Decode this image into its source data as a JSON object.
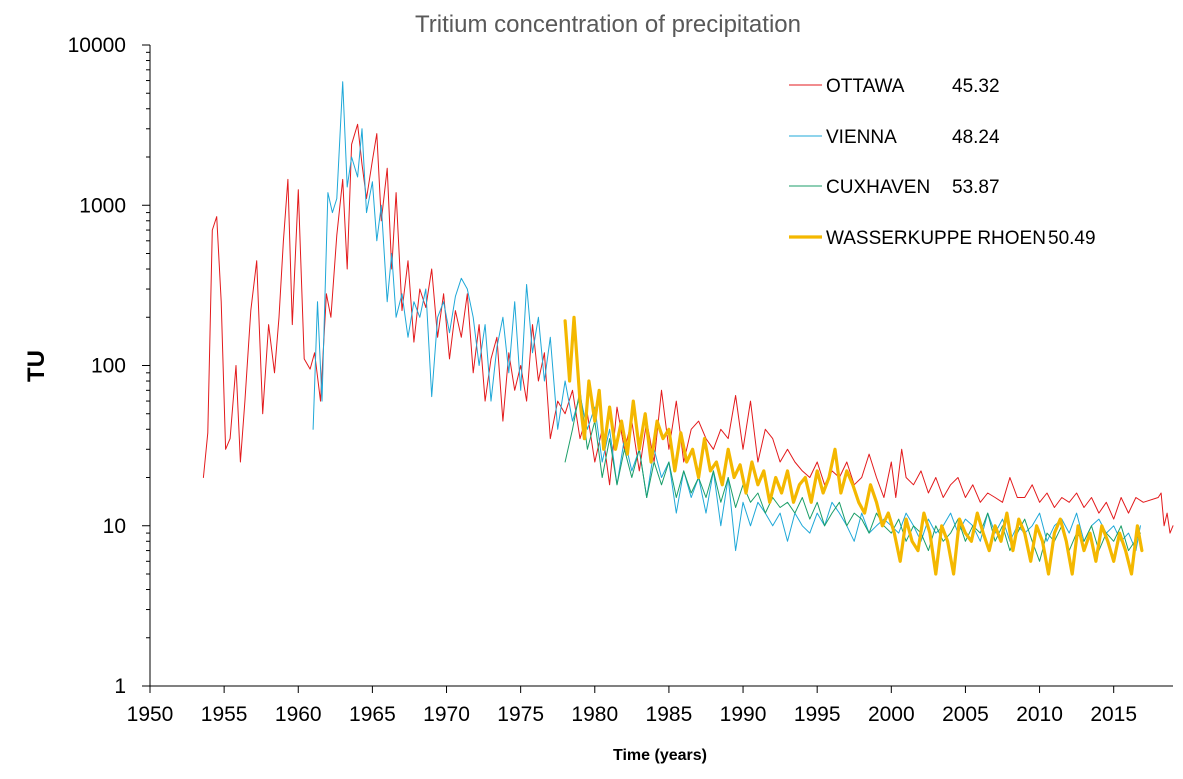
{
  "chart_data": {
    "type": "line",
    "title": "Tritium concentration of precipitation",
    "xlabel": "Time (years)",
    "ylabel": "TU",
    "xlim": [
      1950,
      2019
    ],
    "ylim": [
      1,
      10000
    ],
    "y_scale": "log",
    "x_ticks": [
      "1950",
      "1955",
      "1960",
      "1965",
      "1970",
      "1975",
      "1980",
      "1985",
      "1990",
      "1995",
      "2000",
      "2005",
      "2010",
      "2015"
    ],
    "y_ticks": [
      "1",
      "10",
      "100",
      "1000",
      "10000"
    ],
    "grid": false,
    "legend_position": "top-right",
    "series": [
      {
        "name": "OTTAWA",
        "legend_value": "45.32",
        "color": "#E31A1C",
        "width": 1,
        "x": [
          1953.6,
          1953.9,
          1954.2,
          1954.5,
          1954.8,
          1955.1,
          1955.4,
          1955.8,
          1956.1,
          1956.4,
          1956.8,
          1957.2,
          1957.6,
          1958.0,
          1958.4,
          1958.7,
          1959.0,
          1959.3,
          1959.6,
          1960.0,
          1960.4,
          1960.8,
          1961.1,
          1961.5,
          1961.9,
          1962.2,
          1962.6,
          1963.0,
          1963.3,
          1963.6,
          1964.0,
          1964.3,
          1964.6,
          1965.0,
          1965.3,
          1965.6,
          1966.0,
          1966.3,
          1966.6,
          1967.0,
          1967.4,
          1967.8,
          1968.2,
          1968.6,
          1969.0,
          1969.4,
          1969.8,
          1970.2,
          1970.6,
          1971.0,
          1971.4,
          1971.8,
          1972.2,
          1972.6,
          1973.0,
          1973.4,
          1973.8,
          1974.2,
          1974.6,
          1975.0,
          1975.4,
          1975.8,
          1976.2,
          1976.6,
          1977.0,
          1977.5,
          1978.0,
          1978.5,
          1979.0,
          1979.5,
          1980.0,
          1980.5,
          1981.0,
          1981.5,
          1982.0,
          1982.5,
          1983.0,
          1983.5,
          1984.0,
          1984.5,
          1985.0,
          1985.5,
          1986.0,
          1986.5,
          1987.0,
          1987.5,
          1988.0,
          1988.5,
          1989.0,
          1989.5,
          1990.0,
          1990.5,
          1991.0,
          1991.5,
          1992.0,
          1992.5,
          1993.0,
          1993.5,
          1994.0,
          1994.5,
          1995.0,
          1995.5,
          1996.0,
          1996.5,
          1997.0,
          1997.5,
          1998.0,
          1998.5,
          1999.0,
          1999.5,
          2000.0,
          2000.3,
          2000.7,
          2001.0,
          2001.5,
          2002.0,
          2002.5,
          2003.0,
          2003.5,
          2004.0,
          2004.5,
          2005.0,
          2005.5,
          2006.0,
          2006.5,
          2007.0,
          2007.5,
          2008.0,
          2008.5,
          2009.0,
          2009.5,
          2010.0,
          2010.5,
          2011.0,
          2011.5,
          2012.0,
          2012.5,
          2013.0,
          2013.5,
          2014.0,
          2014.5,
          2015.0,
          2015.5,
          2016.0,
          2016.5,
          2017.0,
          2018.0,
          2018.2,
          2018.4,
          2018.6,
          2018.8,
          2019.0
        ],
        "y": [
          20,
          38,
          700,
          850,
          250,
          30,
          35,
          100,
          25,
          60,
          220,
          450,
          50,
          180,
          90,
          200,
          600,
          1450,
          180,
          1250,
          110,
          95,
          120,
          60,
          280,
          200,
          650,
          1450,
          400,
          2400,
          3200,
          1800,
          1100,
          1900,
          2800,
          800,
          1700,
          400,
          1200,
          220,
          450,
          140,
          300,
          230,
          400,
          150,
          280,
          110,
          220,
          150,
          280,
          90,
          180,
          60,
          110,
          150,
          45,
          120,
          70,
          100,
          60,
          180,
          80,
          120,
          35,
          60,
          50,
          70,
          35,
          50,
          25,
          40,
          18,
          55,
          30,
          45,
          22,
          45,
          25,
          70,
          30,
          60,
          25,
          40,
          45,
          35,
          30,
          40,
          35,
          65,
          30,
          60,
          25,
          40,
          35,
          25,
          30,
          25,
          22,
          20,
          25,
          18,
          22,
          20,
          25,
          18,
          20,
          28,
          20,
          15,
          25,
          15,
          30,
          20,
          18,
          22,
          16,
          20,
          15,
          18,
          20,
          15,
          18,
          14,
          16,
          15,
          14,
          20,
          15,
          15,
          18,
          14,
          16,
          13,
          15,
          14,
          16,
          13,
          15,
          12,
          14,
          11,
          15,
          12,
          15,
          14,
          15,
          16,
          10,
          12,
          9,
          10
        ]
      },
      {
        "name": "VIENNA",
        "legend_value": "48.24",
        "color": "#1FA8D8",
        "width": 1,
        "x": [
          1961.0,
          1961.3,
          1961.6,
          1962.0,
          1962.3,
          1962.6,
          1963.0,
          1963.3,
          1963.6,
          1964.0,
          1964.3,
          1964.6,
          1965.0,
          1965.3,
          1965.6,
          1966.0,
          1966.3,
          1966.6,
          1967.0,
          1967.4,
          1967.8,
          1968.2,
          1968.6,
          1969.0,
          1969.4,
          1969.8,
          1970.2,
          1970.6,
          1971.0,
          1971.4,
          1971.8,
          1972.2,
          1972.6,
          1973.0,
          1973.4,
          1973.8,
          1974.2,
          1974.6,
          1975.0,
          1975.4,
          1975.8,
          1976.2,
          1976.6,
          1977.0,
          1977.5,
          1978.0,
          1978.5,
          1979.0,
          1979.5,
          1980.0,
          1980.5,
          1981.0,
          1981.5,
          1982.0,
          1982.5,
          1983.0,
          1983.5,
          1984.0,
          1984.5,
          1985.0,
          1985.5,
          1986.0,
          1986.5,
          1987.0,
          1987.5,
          1988.0,
          1988.5,
          1989.0,
          1989.5,
          1990.0,
          1990.5,
          1991.0,
          1991.5,
          1992.0,
          1992.5,
          1993.0,
          1993.5,
          1994.0,
          1994.5,
          1995.0,
          1995.5,
          1996.0,
          1996.5,
          1997.0,
          1997.5,
          1998.0,
          1998.5,
          1999.0,
          1999.5,
          2000.0,
          2000.5,
          2001.0,
          2001.5,
          2002.0,
          2002.5,
          2003.0,
          2003.5,
          2004.0,
          2004.5,
          2005.0,
          2005.5,
          2006.0,
          2006.5,
          2007.0,
          2007.5,
          2008.0,
          2008.5,
          2009.0,
          2009.5,
          2010.0,
          2010.5,
          2011.0,
          2011.5,
          2012.0,
          2012.5,
          2013.0,
          2013.5,
          2014.0,
          2014.5,
          2015.0,
          2015.5,
          2016.0,
          2016.5,
          2016.8
        ],
        "y": [
          40,
          250,
          60,
          1200,
          900,
          1100,
          5900,
          1300,
          2000,
          1500,
          3000,
          900,
          1400,
          600,
          1000,
          250,
          500,
          200,
          280,
          150,
          250,
          200,
          300,
          64,
          200,
          250,
          160,
          270,
          350,
          300,
          200,
          100,
          180,
          60,
          130,
          200,
          90,
          250,
          70,
          320,
          120,
          200,
          80,
          150,
          40,
          80,
          45,
          65,
          40,
          55,
          25,
          40,
          18,
          35,
          22,
          30,
          15,
          30,
          20,
          25,
          12,
          22,
          15,
          20,
          12,
          22,
          10,
          20,
          7,
          14,
          10,
          14,
          12,
          10,
          12,
          8,
          12,
          10,
          9,
          12,
          10,
          14,
          12,
          10,
          8,
          12,
          9,
          10,
          11,
          10,
          9,
          12,
          10,
          8,
          11,
          9,
          10,
          12,
          9,
          11,
          10,
          8,
          12,
          9,
          11,
          8,
          10,
          9,
          10,
          12,
          8,
          10,
          11,
          9,
          12,
          8,
          10,
          11,
          9,
          10,
          8,
          9,
          7,
          10
        ]
      },
      {
        "name": "CUXHAVEN",
        "legend_value": "53.87",
        "color": "#1B9E68",
        "width": 1,
        "x": [
          1978.0,
          1978.5,
          1979.0,
          1979.5,
          1980.0,
          1980.5,
          1981.0,
          1981.5,
          1982.0,
          1982.5,
          1983.0,
          1983.5,
          1984.0,
          1984.5,
          1985.0,
          1985.5,
          1986.0,
          1986.5,
          1987.0,
          1987.5,
          1988.0,
          1988.5,
          1989.0,
          1989.5,
          1990.0,
          1990.5,
          1991.0,
          1991.5,
          1992.0,
          1992.5,
          1993.0,
          1993.5,
          1994.0,
          1994.5,
          1995.0,
          1995.5,
          1996.0,
          1996.5,
          1997.0,
          1997.5,
          1998.0,
          1998.5,
          1999.0,
          1999.5,
          2000.0,
          2000.5,
          2001.0,
          2001.5,
          2002.0,
          2002.5,
          2003.0,
          2003.5,
          2004.0,
          2004.5,
          2005.0,
          2005.5,
          2006.0,
          2006.5,
          2007.0,
          2007.5,
          2008.0,
          2008.5,
          2009.0,
          2009.5,
          2010.0,
          2010.5,
          2011.0,
          2011.5,
          2012.0,
          2012.5,
          2013.0,
          2013.5,
          2014.0,
          2014.5,
          2015.0,
          2015.5,
          2016.0,
          2016.8
        ],
        "y": [
          25,
          40,
          70,
          30,
          45,
          20,
          35,
          18,
          30,
          20,
          30,
          15,
          25,
          18,
          25,
          15,
          22,
          16,
          20,
          15,
          22,
          14,
          20,
          13,
          18,
          14,
          16,
          12,
          15,
          13,
          14,
          12,
          15,
          11,
          14,
          10,
          12,
          14,
          10,
          12,
          11,
          9,
          12,
          10,
          9,
          11,
          8,
          10,
          9,
          7,
          10,
          8,
          9,
          11,
          8,
          10,
          9,
          12,
          8,
          10,
          7,
          9,
          11,
          8,
          6,
          9,
          8,
          10,
          7,
          9,
          8,
          10,
          7,
          9,
          8,
          10,
          7,
          9
        ]
      },
      {
        "name": "WASSERKUPPE RHOEN",
        "legend_value": "50.49",
        "color": "#F4B800",
        "width": 3.2,
        "x": [
          1978.0,
          1978.3,
          1978.6,
          1979.0,
          1979.3,
          1979.6,
          1980.0,
          1980.3,
          1980.6,
          1981.0,
          1981.4,
          1981.8,
          1982.2,
          1982.6,
          1983.0,
          1983.4,
          1983.8,
          1984.2,
          1984.6,
          1985.0,
          1985.4,
          1985.8,
          1986.2,
          1986.6,
          1987.0,
          1987.4,
          1987.8,
          1988.2,
          1988.6,
          1989.0,
          1989.4,
          1989.8,
          1990.2,
          1990.6,
          1991.0,
          1991.4,
          1991.8,
          1992.2,
          1992.6,
          1993.0,
          1993.4,
          1993.8,
          1994.2,
          1994.6,
          1995.0,
          1995.4,
          1995.8,
          1996.2,
          1996.6,
          1997.0,
          1997.4,
          1997.8,
          1998.2,
          1998.6,
          1999.0,
          1999.4,
          1999.8,
          2000.2,
          2000.6,
          2001.0,
          2001.4,
          2001.8,
          2002.2,
          2002.6,
          2003.0,
          2003.4,
          2003.8,
          2004.2,
          2004.6,
          2005.0,
          2005.4,
          2005.8,
          2006.2,
          2006.6,
          2007.0,
          2007.4,
          2007.8,
          2008.2,
          2008.6,
          2009.0,
          2009.4,
          2009.8,
          2010.2,
          2010.6,
          2011.0,
          2011.4,
          2011.8,
          2012.2,
          2012.6,
          2013.0,
          2013.4,
          2013.8,
          2014.2,
          2014.6,
          2015.0,
          2015.4,
          2015.8,
          2016.2,
          2016.6,
          2016.9
        ],
        "y": [
          190,
          80,
          200,
          60,
          35,
          80,
          45,
          70,
          30,
          55,
          30,
          45,
          28,
          60,
          30,
          50,
          25,
          45,
          35,
          40,
          22,
          38,
          25,
          30,
          20,
          35,
          22,
          25,
          18,
          30,
          20,
          24,
          16,
          25,
          18,
          22,
          14,
          20,
          16,
          22,
          14,
          18,
          20,
          14,
          22,
          16,
          20,
          30,
          16,
          22,
          18,
          14,
          12,
          18,
          14,
          10,
          12,
          9,
          6,
          11,
          8,
          7,
          12,
          9,
          5,
          10,
          8,
          5,
          11,
          9,
          8,
          12,
          9,
          7,
          10,
          8,
          12,
          7,
          11,
          9,
          6,
          10,
          8,
          5,
          9,
          11,
          8,
          5,
          10,
          7,
          9,
          6,
          10,
          8,
          6,
          9,
          7,
          5,
          10,
          7
        ]
      }
    ]
  }
}
